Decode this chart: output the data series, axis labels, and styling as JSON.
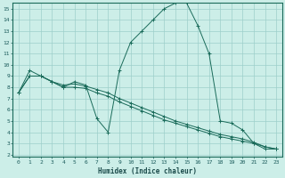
{
  "xlabel": "Humidex (Indice chaleur)",
  "bg_color": "#cceee8",
  "line_color": "#1a6b5a",
  "grid_color": "#9dcfca",
  "xlim": [
    -0.5,
    23.5
  ],
  "ylim": [
    1.8,
    15.5
  ],
  "xticks": [
    0,
    1,
    2,
    3,
    4,
    5,
    6,
    7,
    8,
    9,
    10,
    11,
    12,
    13,
    14,
    15,
    16,
    17,
    18,
    19,
    20,
    21,
    22,
    23
  ],
  "yticks": [
    2,
    3,
    4,
    5,
    6,
    7,
    8,
    9,
    10,
    11,
    12,
    13,
    14,
    15
  ],
  "series1_x": [
    0,
    1,
    2,
    3,
    4,
    5,
    6,
    7,
    8,
    9,
    10,
    11,
    12,
    13,
    14,
    15,
    16,
    17,
    18,
    19,
    20,
    21,
    22,
    23
  ],
  "series1_y": [
    7.5,
    9.5,
    9.0,
    8.5,
    8.0,
    8.5,
    8.2,
    5.2,
    4.0,
    9.5,
    12.0,
    13.0,
    14.0,
    15.0,
    15.5,
    15.5,
    13.5,
    11.0,
    5.0,
    4.8,
    4.2,
    3.0,
    2.5,
    2.5
  ],
  "series2_x": [
    0,
    1,
    2,
    3,
    4,
    5,
    6,
    7,
    8,
    9,
    10,
    11,
    12,
    13,
    14,
    15,
    16,
    17,
    18,
    19,
    20,
    21,
    22,
    23
  ],
  "series2_y": [
    7.5,
    9.0,
    9.0,
    8.5,
    8.2,
    8.3,
    8.1,
    7.8,
    7.5,
    7.0,
    6.6,
    6.2,
    5.8,
    5.4,
    5.0,
    4.7,
    4.4,
    4.1,
    3.8,
    3.6,
    3.4,
    3.1,
    2.7,
    2.5
  ],
  "series3_x": [
    0,
    1,
    2,
    3,
    4,
    5,
    6,
    7,
    8,
    9,
    10,
    11,
    12,
    13,
    14,
    15,
    16,
    17,
    18,
    19,
    20,
    21,
    22,
    23
  ],
  "series3_y": [
    7.5,
    9.0,
    9.0,
    8.5,
    8.0,
    8.0,
    7.9,
    7.5,
    7.2,
    6.7,
    6.3,
    5.9,
    5.5,
    5.1,
    4.8,
    4.5,
    4.2,
    3.9,
    3.6,
    3.4,
    3.2,
    3.0,
    2.7,
    2.5
  ]
}
